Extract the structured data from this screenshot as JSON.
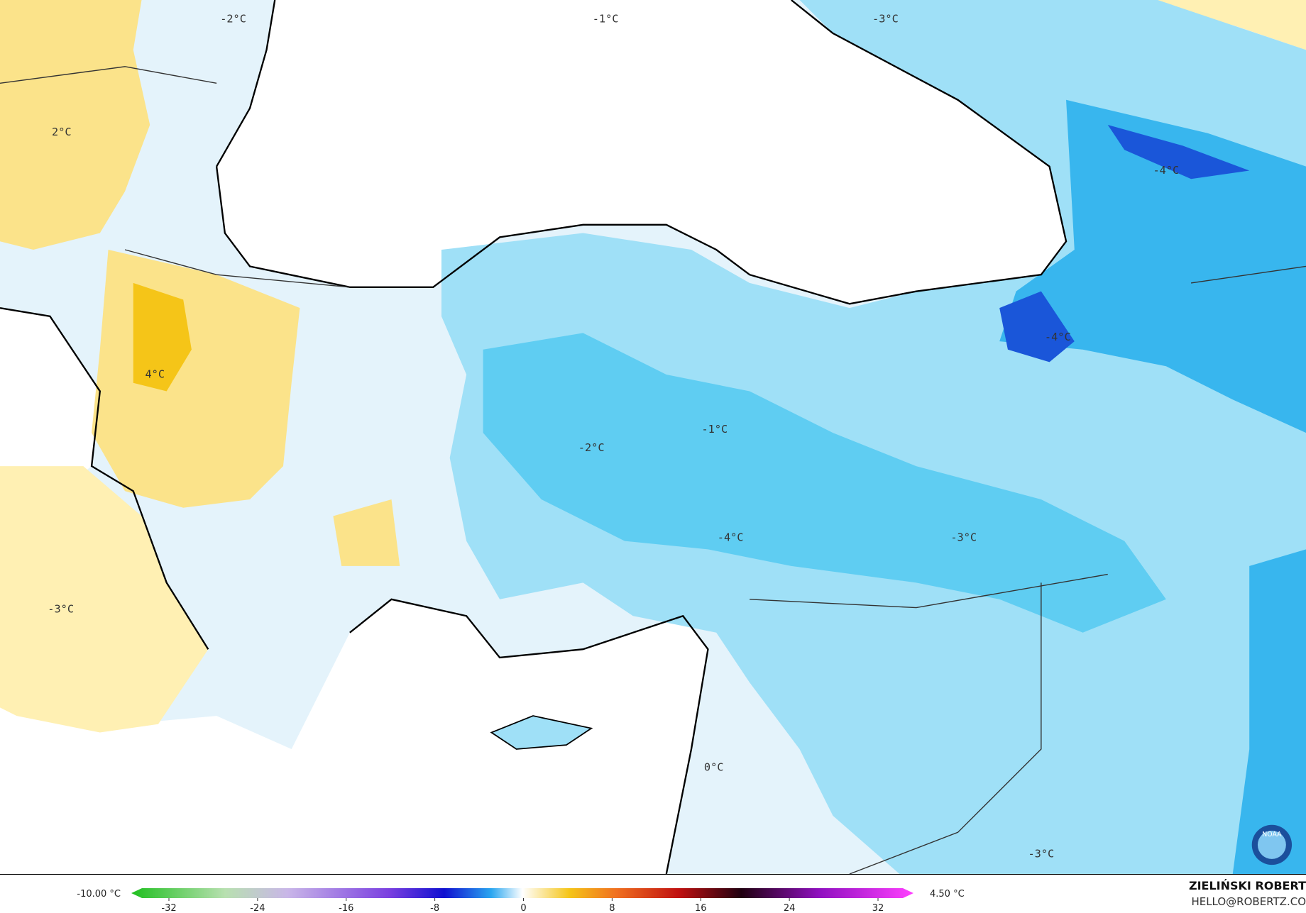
{
  "map_labels": [
    "-2°C",
    "-1°C",
    "-3°C",
    "2°C",
    "-4°C",
    "-4°C",
    "4°C",
    "-1°C",
    "-2°C",
    "-4°C",
    "-3°C",
    "-3°C",
    "0°C",
    "-3°C"
  ],
  "colorbar": {
    "min_label": "-10.00 °C",
    "max_label": "4.50 °C",
    "ticks": [
      -32,
      -24,
      -16,
      -8,
      0,
      8,
      16,
      24,
      32
    ]
  },
  "credit": {
    "name": "ZIELIŃSKI ROBERT",
    "email": "HELLO@ROBERTZ.CO"
  }
}
